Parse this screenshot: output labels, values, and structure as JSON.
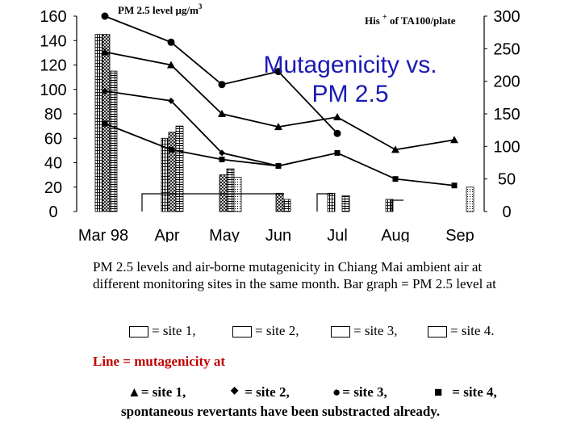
{
  "chart_data": {
    "type": "bar+line",
    "title": "Mutagenicity vs. PM 2.5",
    "categories": [
      "Mar 98",
      "Apr",
      "May",
      "Jun",
      "Jul",
      "Aug",
      "Sep"
    ],
    "y_left": {
      "label": "PM 2.5 level µg/m",
      "label_sup": "3",
      "range": [
        0,
        160
      ],
      "ticks": [
        "0",
        "20",
        "40",
        "60",
        "80",
        "100",
        "120",
        "140",
        "160"
      ]
    },
    "y_right": {
      "label": "His",
      "label_sup": "+",
      "label_rest": " of TA100/plate",
      "range": [
        0,
        300
      ],
      "ticks": [
        "0",
        "50",
        "100",
        "150",
        "200",
        "250",
        "300"
      ]
    },
    "bar_series": [
      {
        "site": "site 1",
        "values": [
          145,
          60,
          0,
          0,
          15,
          10,
          0
        ]
      },
      {
        "site": "site 2",
        "values": [
          145,
          65,
          30,
          15,
          0,
          0,
          0
        ]
      },
      {
        "site": "site 3",
        "values": [
          115,
          70,
          35,
          10,
          13,
          0,
          0
        ]
      },
      {
        "site": "site 4",
        "values": [
          0,
          0,
          28,
          0,
          0,
          0,
          20
        ]
      }
    ],
    "line_series": [
      {
        "site": "site 1",
        "marker": "triangle",
        "values": [
          245,
          225,
          150,
          130,
          145,
          95,
          110
        ]
      },
      {
        "site": "site 2",
        "marker": "diamond",
        "values": [
          185,
          170,
          90,
          70
        ]
      },
      {
        "site": "site 3",
        "marker": "circle",
        "values": [
          300,
          260,
          195,
          215,
          120
        ]
      },
      {
        "site": "site 4",
        "marker": "square",
        "values": [
          135,
          95,
          80,
          70,
          90,
          50,
          40
        ]
      }
    ]
  },
  "caption": "PM 2.5 levels and air-borne mutagenicity in Chiang Mai ambient air at different monitoring sites in the same month. Bar graph = PM 2.5 level at",
  "bar_legend": [
    {
      "label": "= site 1,"
    },
    {
      "label": "= site 2,"
    },
    {
      "label": "= site 3,"
    },
    {
      "label": "= site 4."
    }
  ],
  "line_legend_title": "Line = mutagenicity at",
  "line_legend": [
    {
      "glyph": "▲",
      "label": "= site 1,"
    },
    {
      "glyph": "◆",
      "label": "= site 2,"
    },
    {
      "glyph": "●",
      "label": "= site 3,"
    },
    {
      "glyph": "■",
      "label": "= site 4,"
    }
  ],
  "note": "spontaneous revertants have been substracted already.",
  "colors": {
    "title": "#1a1ab5",
    "line_title": "#c00000",
    "axis": "#000000"
  }
}
